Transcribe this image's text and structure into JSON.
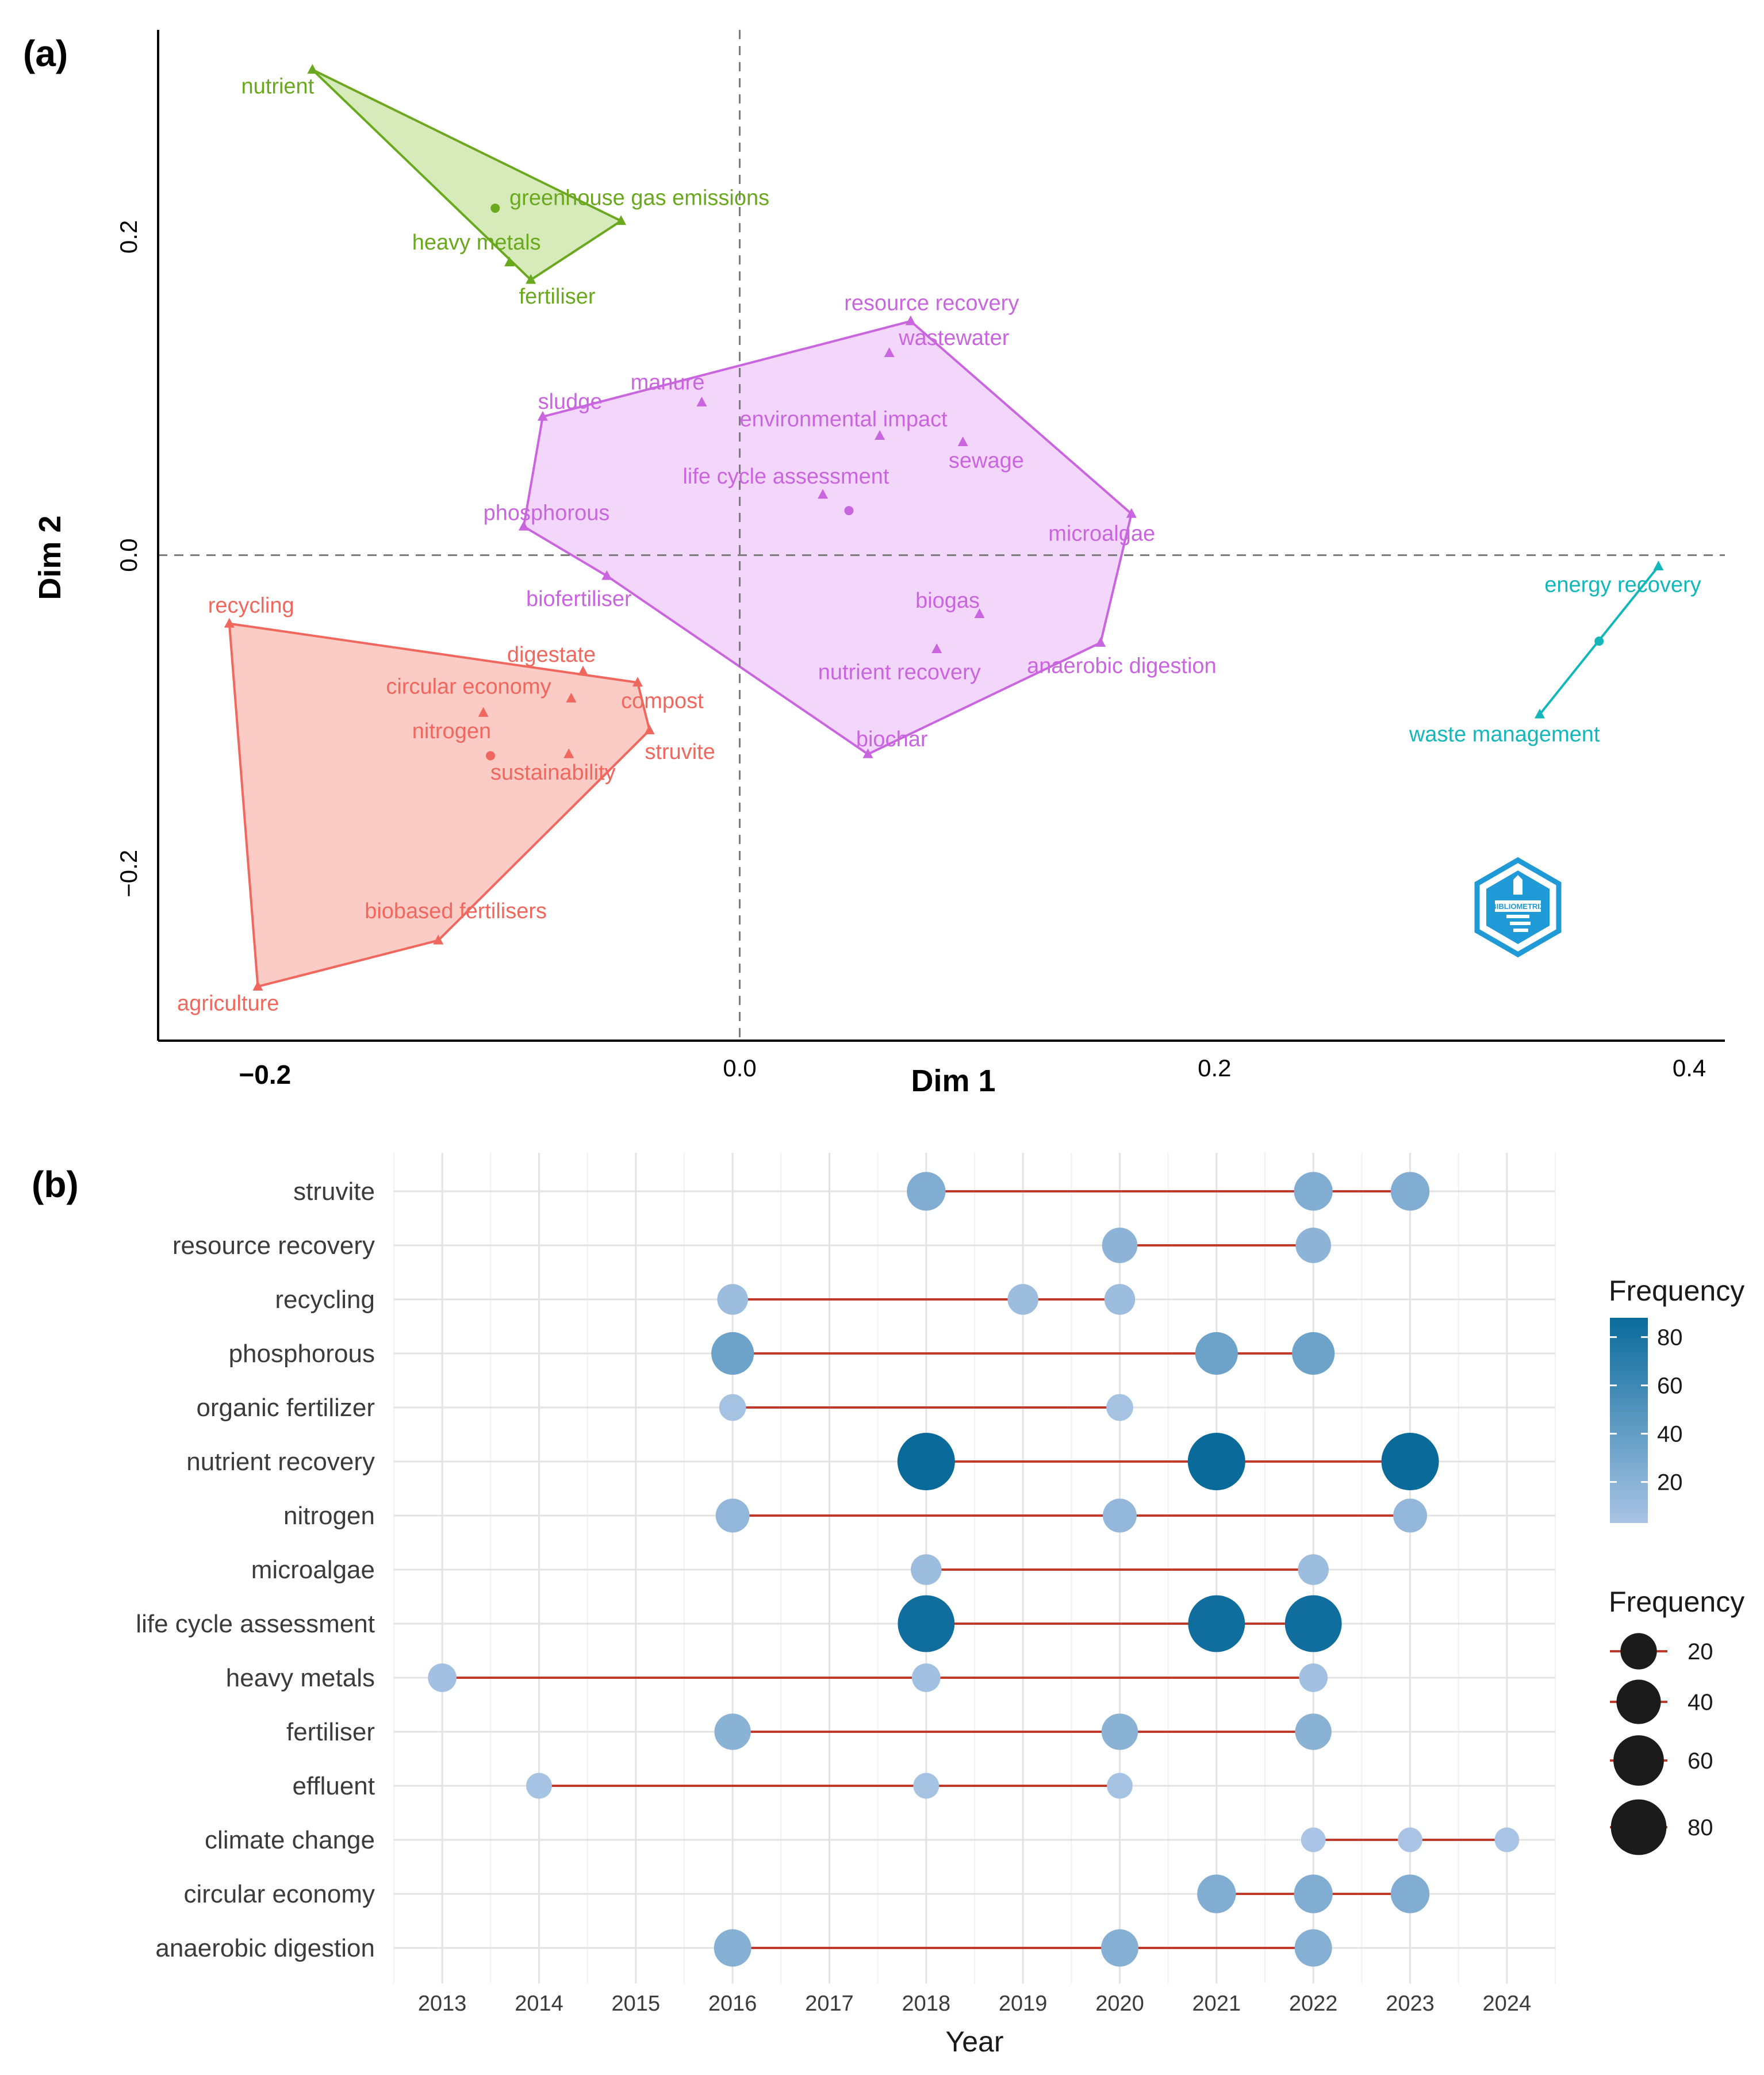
{
  "panel_a_label": "(a)",
  "panel_b_label": "(b)",
  "colors": {
    "cluster_green": "#6aa81e",
    "cluster_green_fill": "#d3e8b4",
    "cluster_purple": "#c965de",
    "cluster_purple_fill": "#f2d4fb",
    "cluster_red": "#f0675e",
    "cluster_red_fill": "#fbc8c0",
    "cluster_cyan": "#13b7b9",
    "segment": "#c0392b",
    "dot_low": "#a9c4e4",
    "dot_high": "#0a6b9b",
    "logo": "#1f9ad6"
  },
  "logo_text": "BIBLIOMETRIX",
  "chart_data": [
    {
      "type": "scatter",
      "title": "",
      "xlabel": "Dim 1",
      "ylabel": "Dim 2",
      "xlim": [
        -0.245,
        0.415
      ],
      "ylim": [
        -0.305,
        0.33
      ],
      "xticks": [
        {
          "value": -0.2,
          "label": "−0.2"
        },
        {
          "value": 0.0,
          "label": "0.0"
        },
        {
          "value": 0.2,
          "label": "0.2"
        },
        {
          "value": 0.4,
          "label": "0.4"
        }
      ],
      "yticks": [
        {
          "value": 0.2,
          "label": "0.2"
        },
        {
          "value": 0.0,
          "label": "0.0"
        },
        {
          "value": -0.2,
          "label": "−0.2"
        }
      ],
      "reference_lines": {
        "x": 0.0,
        "y": 0.0,
        "style": "dashed"
      },
      "clusters": [
        {
          "name": "green",
          "hull": [
            [
              -0.18,
              0.305
            ],
            [
              -0.05,
              0.21
            ],
            [
              -0.088,
              0.173
            ]
          ],
          "points": [
            {
              "label": "nutrient",
              "x": -0.18,
              "y": 0.305,
              "marker": "triangle",
              "lx": -0.21,
              "ly": 0.29
            },
            {
              "label": "greenhouse gas emissions",
              "x": -0.103,
              "y": 0.218,
              "marker": "circle",
              "lx": -0.097,
              "ly": 0.22
            },
            {
              "label": "heavy metals",
              "x": -0.097,
              "y": 0.184,
              "marker": "triangle",
              "lx": -0.138,
              "ly": 0.192
            },
            {
              "label": "fertiliser",
              "x": -0.088,
              "y": 0.173,
              "marker": "triangle",
              "lx": -0.093,
              "ly": 0.158
            },
            {
              "label": "",
              "x": -0.05,
              "y": 0.21,
              "marker": "triangle"
            }
          ]
        },
        {
          "name": "purple",
          "hull": [
            [
              0.072,
              0.147
            ],
            [
              0.165,
              0.026
            ],
            [
              0.152,
              -0.055
            ],
            [
              0.054,
              -0.125
            ],
            [
              -0.056,
              -0.013
            ],
            [
              -0.091,
              0.018
            ],
            [
              -0.083,
              0.087
            ]
          ],
          "points": [
            {
              "label": "resource recovery",
              "x": 0.072,
              "y": 0.147,
              "marker": "triangle",
              "lx": 0.044,
              "ly": 0.154
            },
            {
              "label": "wastewater",
              "x": 0.063,
              "y": 0.127,
              "marker": "triangle",
              "lx": 0.067,
              "ly": 0.132
            },
            {
              "label": "manure",
              "x": -0.016,
              "y": 0.096,
              "marker": "triangle",
              "lx": -0.046,
              "ly": 0.104
            },
            {
              "label": "sludge",
              "x": -0.083,
              "y": 0.087,
              "marker": "triangle",
              "lx": -0.085,
              "ly": 0.092
            },
            {
              "label": "environmental impact",
              "x": 0.059,
              "y": 0.075,
              "marker": "triangle",
              "lx": 0.0,
              "ly": 0.081
            },
            {
              "label": "sewage",
              "x": 0.094,
              "y": 0.071,
              "marker": "triangle",
              "lx": 0.088,
              "ly": 0.055
            },
            {
              "label": "life cycle assessment",
              "x": 0.035,
              "y": 0.038,
              "marker": "triangle",
              "lx": -0.024,
              "ly": 0.045
            },
            {
              "label": "",
              "x": 0.046,
              "y": 0.028,
              "marker": "circle"
            },
            {
              "label": "phosphorous",
              "x": -0.091,
              "y": 0.018,
              "marker": "triangle",
              "lx": -0.108,
              "ly": 0.022
            },
            {
              "label": "microalgae",
              "x": 0.165,
              "y": 0.026,
              "marker": "triangle",
              "lx": 0.13,
              "ly": 0.009
            },
            {
              "label": "biofertiliser",
              "x": -0.056,
              "y": -0.013,
              "marker": "triangle",
              "lx": -0.09,
              "ly": -0.032
            },
            {
              "label": "biogas",
              "x": 0.101,
              "y": -0.037,
              "marker": "triangle",
              "lx": 0.074,
              "ly": -0.033
            },
            {
              "label": "anaerobic digestion",
              "x": 0.152,
              "y": -0.055,
              "marker": "triangle",
              "lx": 0.121,
              "ly": -0.074
            },
            {
              "label": "nutrient recovery",
              "x": 0.083,
              "y": -0.059,
              "marker": "triangle",
              "lx": 0.033,
              "ly": -0.078
            },
            {
              "label": "biochar",
              "x": 0.054,
              "y": -0.125,
              "marker": "triangle",
              "lx": 0.049,
              "ly": -0.12
            }
          ]
        },
        {
          "name": "red",
          "hull": [
            [
              -0.215,
              -0.043
            ],
            [
              -0.043,
              -0.08
            ],
            [
              -0.038,
              -0.11
            ],
            [
              -0.127,
              -0.242
            ],
            [
              -0.203,
              -0.271
            ]
          ],
          "points": [
            {
              "label": "recycling",
              "x": -0.215,
              "y": -0.043,
              "marker": "triangle",
              "lx": -0.224,
              "ly": -0.036
            },
            {
              "label": "digestate",
              "x": -0.066,
              "y": -0.073,
              "marker": "triangle",
              "lx": -0.098,
              "ly": -0.067
            },
            {
              "label": "circular economy",
              "x": -0.071,
              "y": -0.09,
              "marker": "triangle",
              "lx": -0.149,
              "ly": -0.087
            },
            {
              "label": "compost",
              "x": -0.043,
              "y": -0.08,
              "marker": "triangle",
              "lx": -0.05,
              "ly": -0.096
            },
            {
              "label": "",
              "x": -0.108,
              "y": -0.099,
              "marker": "triangle"
            },
            {
              "label": "nitrogen",
              "x": -0.105,
              "y": -0.126,
              "marker": "circle",
              "lx": -0.138,
              "ly": -0.115
            },
            {
              "label": "",
              "x": -0.072,
              "y": -0.125,
              "marker": "triangle"
            },
            {
              "label": "sustainability",
              "x": -0.072,
              "y": -0.125,
              "marker": "none",
              "lx": -0.105,
              "ly": -0.141
            },
            {
              "label": "struvite",
              "x": -0.038,
              "y": -0.11,
              "marker": "triangle",
              "lx": -0.04,
              "ly": -0.128
            },
            {
              "label": "biobased fertilisers",
              "x": -0.127,
              "y": -0.242,
              "marker": "triangle",
              "lx": -0.158,
              "ly": -0.228
            },
            {
              "label": "agriculture",
              "x": -0.203,
              "y": -0.271,
              "marker": "triangle",
              "lx": -0.237,
              "ly": -0.286
            }
          ]
        },
        {
          "name": "cyan",
          "hull": [
            [
              0.387,
              -0.007
            ],
            [
              0.337,
              -0.1
            ]
          ],
          "points": [
            {
              "label": "energy recovery",
              "x": 0.387,
              "y": -0.007,
              "marker": "triangle",
              "lx": 0.339,
              "ly": -0.023
            },
            {
              "label": "",
              "x": 0.362,
              "y": -0.054,
              "marker": "circle"
            },
            {
              "label": "waste management",
              "x": 0.337,
              "y": -0.1,
              "marker": "triangle",
              "lx": 0.282,
              "ly": -0.117
            }
          ]
        }
      ]
    },
    {
      "type": "scatter",
      "title": "",
      "xlabel": "Year",
      "ylabel": "",
      "xlim": [
        2012.5,
        2024.5
      ],
      "x": [
        2013,
        2014,
        2015,
        2016,
        2017,
        2018,
        2019,
        2020,
        2021,
        2022,
        2023,
        2024
      ],
      "categories": [
        "struvite",
        "resource recovery",
        "recycling",
        "phosphorous",
        "organic fertilizer",
        "nutrient recovery",
        "nitrogen",
        "microalgae",
        "life cycle assessment",
        "heavy metals",
        "fertiliser",
        "effluent",
        "climate change",
        "circular economy",
        "anaerobic digestion"
      ],
      "series": [
        {
          "name": "struvite",
          "points": [
            {
              "year": 2018,
              "freq": 25
            },
            {
              "year": 2022,
              "freq": 25
            },
            {
              "year": 2023,
              "freq": 25
            }
          ]
        },
        {
          "name": "resource recovery",
          "points": [
            {
              "year": 2020,
              "freq": 18
            },
            {
              "year": 2022,
              "freq": 18
            }
          ]
        },
        {
          "name": "recycling",
          "points": [
            {
              "year": 2016,
              "freq": 10
            },
            {
              "year": 2019,
              "freq": 10
            },
            {
              "year": 2020,
              "freq": 10
            }
          ]
        },
        {
          "name": "phosphorous",
          "points": [
            {
              "year": 2016,
              "freq": 35
            },
            {
              "year": 2021,
              "freq": 35
            },
            {
              "year": 2022,
              "freq": 35
            }
          ]
        },
        {
          "name": "organic fertilizer",
          "points": [
            {
              "year": 2016,
              "freq": 5
            },
            {
              "year": 2020,
              "freq": 5
            }
          ]
        },
        {
          "name": "nutrient recovery",
          "points": [
            {
              "year": 2018,
              "freq": 88
            },
            {
              "year": 2021,
              "freq": 88
            },
            {
              "year": 2023,
              "freq": 88
            }
          ]
        },
        {
          "name": "nitrogen",
          "points": [
            {
              "year": 2016,
              "freq": 15
            },
            {
              "year": 2020,
              "freq": 15
            },
            {
              "year": 2023,
              "freq": 15
            }
          ]
        },
        {
          "name": "microalgae",
          "points": [
            {
              "year": 2018,
              "freq": 10
            },
            {
              "year": 2022,
              "freq": 10
            }
          ]
        },
        {
          "name": "life cycle assessment",
          "points": [
            {
              "year": 2018,
              "freq": 85
            },
            {
              "year": 2021,
              "freq": 85
            },
            {
              "year": 2022,
              "freq": 85
            }
          ]
        },
        {
          "name": "heavy metals",
          "points": [
            {
              "year": 2013,
              "freq": 7
            },
            {
              "year": 2018,
              "freq": 7
            },
            {
              "year": 2022,
              "freq": 7
            }
          ]
        },
        {
          "name": "fertiliser",
          "points": [
            {
              "year": 2016,
              "freq": 20
            },
            {
              "year": 2020,
              "freq": 20
            },
            {
              "year": 2022,
              "freq": 20
            }
          ]
        },
        {
          "name": "effluent",
          "points": [
            {
              "year": 2014,
              "freq": 4
            },
            {
              "year": 2018,
              "freq": 4
            },
            {
              "year": 2020,
              "freq": 4
            }
          ]
        },
        {
          "name": "climate change",
          "points": [
            {
              "year": 2022,
              "freq": 3
            },
            {
              "year": 2023,
              "freq": 3
            },
            {
              "year": 2024,
              "freq": 3
            }
          ]
        },
        {
          "name": "circular economy",
          "points": [
            {
              "year": 2021,
              "freq": 25
            },
            {
              "year": 2022,
              "freq": 25
            },
            {
              "year": 2023,
              "freq": 25
            }
          ]
        },
        {
          "name": "anaerobic digestion",
          "points": [
            {
              "year": 2016,
              "freq": 22
            },
            {
              "year": 2020,
              "freq": 22
            },
            {
              "year": 2022,
              "freq": 22
            }
          ]
        }
      ],
      "legend": {
        "color_title": "Frequency",
        "color_ticks": [
          80,
          60,
          40,
          20
        ],
        "color_range": [
          3,
          88
        ],
        "size_title": "Frequency",
        "size_values": [
          20,
          40,
          60,
          80
        ],
        "placement": "right"
      }
    }
  ]
}
